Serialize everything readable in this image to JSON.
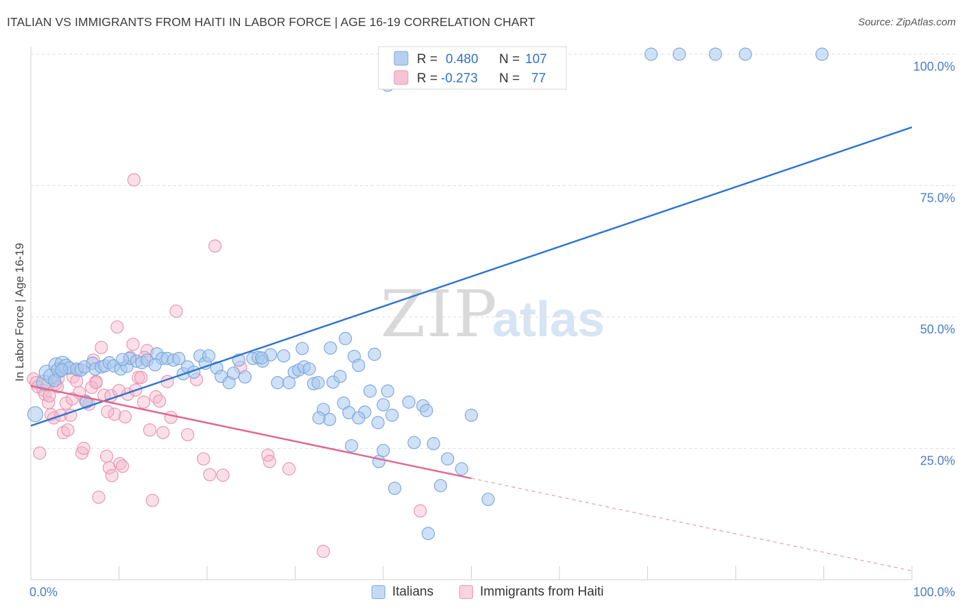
{
  "title": "ITALIAN VS IMMIGRANTS FROM HAITI IN LABOR FORCE | AGE 16-19 CORRELATION CHART",
  "source": "Source: ZipAtlas.com",
  "watermark": {
    "part1": "ZIP",
    "part2": "atlas"
  },
  "colors": {
    "blue_fill": "#a8c8ee",
    "blue_stroke": "#7fa8dc",
    "blue_line": "#2f74d0",
    "pink_fill": "#f5b8cc",
    "pink_stroke": "#e896b2",
    "pink_line": "#e06890",
    "grid": "#dddddd",
    "tick_label": "#4a7cc9"
  },
  "chart_data": {
    "type": "scatter",
    "ylabel": "In Labor Force | Age 16-19",
    "xlabel": "",
    "x_tick_labels": [
      "0.0%",
      "100.0%"
    ],
    "y_tick_labels": [
      "25.0%",
      "50.0%",
      "75.0%",
      "100.0%"
    ],
    "xlim": [
      0,
      100
    ],
    "ylim": [
      0,
      100
    ],
    "legend": [
      {
        "r_label": "R =",
        "r_value": "0.480",
        "n_label": "N =",
        "n_value": "107"
      },
      {
        "r_label": "R =",
        "r_value": "-0.273",
        "n_label": "N =",
        "n_value": "77"
      }
    ],
    "series": [
      {
        "name": "Italians",
        "trend": {
          "x0": 0,
          "y0": 29.3,
          "x1": 100,
          "y1": 86.1
        },
        "points": [
          [
            0.5,
            31.5
          ],
          [
            1.5,
            37.5
          ],
          [
            1.8,
            39.4
          ],
          [
            2.3,
            38.7
          ],
          [
            2.9,
            40.8
          ],
          [
            3.2,
            39.9
          ],
          [
            3.6,
            41.1
          ],
          [
            4.0,
            40.5
          ],
          [
            4.4,
            40.3
          ],
          [
            5.2,
            40.1
          ],
          [
            5.7,
            39.9
          ],
          [
            6.1,
            40.5
          ],
          [
            7.0,
            41.2
          ],
          [
            7.3,
            40.1
          ],
          [
            8.0,
            40.5
          ],
          [
            8.4,
            40.7
          ],
          [
            8.9,
            41.3
          ],
          [
            9.4,
            40.7
          ],
          [
            10.2,
            40.1
          ],
          [
            10.9,
            40.6
          ],
          [
            11.2,
            42.1
          ],
          [
            12.0,
            41.6
          ],
          [
            12.6,
            41.3
          ],
          [
            13.2,
            41.8
          ],
          [
            14.3,
            43.0
          ],
          [
            14.9,
            42.1
          ],
          [
            15.5,
            42.1
          ],
          [
            16.2,
            41.8
          ],
          [
            16.8,
            42.1
          ],
          [
            17.3,
            39.2
          ],
          [
            17.8,
            40.5
          ],
          [
            18.5,
            39.5
          ],
          [
            19.2,
            42.6
          ],
          [
            19.8,
            41.2
          ],
          [
            20.2,
            42.6
          ],
          [
            21.1,
            40.3
          ],
          [
            21.6,
            38.7
          ],
          [
            22.5,
            37.5
          ],
          [
            23.0,
            39.3
          ],
          [
            23.6,
            41.8
          ],
          [
            24.3,
            38.6
          ],
          [
            25.2,
            42.1
          ],
          [
            25.8,
            42.3
          ],
          [
            26.3,
            41.6
          ],
          [
            27.2,
            42.8
          ],
          [
            28.0,
            37.5
          ],
          [
            28.7,
            42.6
          ],
          [
            29.3,
            37.5
          ],
          [
            29.9,
            39.5
          ],
          [
            30.4,
            39.9
          ],
          [
            31.0,
            40.5
          ],
          [
            31.6,
            40.1
          ],
          [
            32.1,
            37.3
          ],
          [
            32.6,
            37.5
          ],
          [
            33.2,
            32.4
          ],
          [
            33.9,
            30.5
          ],
          [
            34.3,
            37.6
          ],
          [
            35.1,
            38.7
          ],
          [
            35.5,
            33.6
          ],
          [
            36.1,
            31.8
          ],
          [
            36.7,
            42.5
          ],
          [
            37.2,
            40.8
          ],
          [
            37.9,
            31.9
          ],
          [
            38.5,
            35.9
          ],
          [
            39.0,
            42.9
          ],
          [
            39.4,
            29.9
          ],
          [
            40.0,
            33.3
          ],
          [
            40.5,
            35.9
          ],
          [
            41.0,
            31.3
          ],
          [
            42.9,
            33.8
          ],
          [
            43.5,
            26.1
          ],
          [
            44.5,
            33.1
          ],
          [
            44.9,
            32.2
          ],
          [
            45.7,
            25.9
          ],
          [
            46.5,
            17.9
          ],
          [
            47.3,
            23.0
          ],
          [
            48.9,
            21.1
          ],
          [
            50.0,
            31.3
          ],
          [
            51.9,
            15.3
          ],
          [
            34.0,
            44.1
          ],
          [
            35.7,
            45.9
          ],
          [
            30.8,
            44.0
          ],
          [
            26.2,
            42.2
          ],
          [
            37.2,
            30.8
          ],
          [
            32.7,
            30.8
          ],
          [
            45.1,
            8.8
          ],
          [
            39.5,
            22.5
          ],
          [
            41.3,
            17.4
          ],
          [
            36.4,
            25.5
          ],
          [
            40.0,
            24.6
          ],
          [
            2.7,
            37.9
          ],
          [
            6.3,
            33.8
          ],
          [
            10.4,
            41.9
          ],
          [
            14.1,
            40.9
          ],
          [
            3.5,
            39.9
          ],
          [
            47.3,
            100.0
          ],
          [
            50.1,
            100.0
          ],
          [
            53.0,
            100.0
          ],
          [
            54.5,
            100.0
          ],
          [
            70.4,
            100.0
          ],
          [
            73.6,
            100.0
          ],
          [
            77.7,
            100.0
          ],
          [
            81.1,
            100.0
          ],
          [
            89.8,
            100.0
          ],
          [
            40.5,
            94.1
          ],
          [
            41.8,
            100.0
          ],
          [
            42.8,
            100.0
          ]
        ]
      },
      {
        "name": "Immigrants from Haiti",
        "trend": {
          "x0": 0,
          "y0": 36.9,
          "x1": 50,
          "y1": 19.3
        },
        "trend_ext": {
          "x0": 50,
          "y0": 19.3,
          "x1": 100,
          "y1": 1.7
        },
        "points": [
          [
            0.3,
            38.2
          ],
          [
            0.6,
            37.5
          ],
          [
            0.8,
            36.7
          ],
          [
            1.0,
            24.1
          ],
          [
            1.4,
            36.1
          ],
          [
            1.6,
            35.3
          ],
          [
            2.0,
            33.7
          ],
          [
            2.3,
            31.4
          ],
          [
            2.6,
            30.8
          ],
          [
            2.8,
            37.3
          ],
          [
            3.1,
            38.3
          ],
          [
            3.4,
            31.3
          ],
          [
            3.7,
            28.0
          ],
          [
            4.0,
            33.6
          ],
          [
            4.2,
            28.5
          ],
          [
            4.5,
            31.3
          ],
          [
            4.8,
            38.6
          ],
          [
            5.2,
            37.8
          ],
          [
            5.5,
            35.6
          ],
          [
            5.8,
            24.1
          ],
          [
            6.0,
            25.0
          ],
          [
            6.2,
            34.0
          ],
          [
            6.6,
            33.4
          ],
          [
            7.1,
            41.8
          ],
          [
            7.4,
            37.7
          ],
          [
            7.7,
            15.7
          ],
          [
            8.0,
            44.2
          ],
          [
            8.3,
            35.1
          ],
          [
            8.6,
            23.5
          ],
          [
            8.9,
            21.3
          ],
          [
            9.2,
            19.8
          ],
          [
            9.5,
            31.5
          ],
          [
            9.8,
            48.1
          ],
          [
            10.1,
            22.1
          ],
          [
            10.4,
            21.6
          ],
          [
            10.7,
            31.0
          ],
          [
            11.0,
            35.3
          ],
          [
            11.3,
            42.3
          ],
          [
            11.6,
            44.8
          ],
          [
            11.9,
            36.1
          ],
          [
            12.2,
            38.5
          ],
          [
            12.5,
            38.5
          ],
          [
            12.8,
            33.8
          ],
          [
            13.2,
            43.6
          ],
          [
            13.5,
            28.5
          ],
          [
            13.8,
            15.1
          ],
          [
            14.2,
            34.8
          ],
          [
            14.6,
            34.0
          ],
          [
            15.0,
            28.0
          ],
          [
            15.5,
            37.7
          ],
          [
            15.9,
            30.9
          ],
          [
            16.5,
            51.1
          ],
          [
            17.8,
            27.6
          ],
          [
            18.8,
            38.1
          ],
          [
            19.6,
            23.0
          ],
          [
            20.3,
            20.0
          ],
          [
            20.9,
            63.5
          ],
          [
            21.8,
            19.9
          ],
          [
            23.8,
            40.4
          ],
          [
            26.9,
            23.7
          ],
          [
            27.1,
            22.5
          ],
          [
            29.3,
            21.1
          ],
          [
            33.2,
            5.4
          ],
          [
            44.2,
            13.1
          ],
          [
            11.7,
            76.1
          ],
          [
            3.0,
            36.7
          ],
          [
            5.3,
            39.9
          ],
          [
            2.1,
            35.0
          ],
          [
            6.9,
            36.6
          ],
          [
            9.1,
            35.0
          ],
          [
            4.7,
            34.4
          ],
          [
            3.5,
            40.3
          ],
          [
            1.9,
            37.1
          ],
          [
            7.4,
            37.5
          ],
          [
            12.9,
            42.3
          ],
          [
            10.0,
            36.0
          ],
          [
            8.7,
            32.0
          ]
        ]
      }
    ]
  }
}
